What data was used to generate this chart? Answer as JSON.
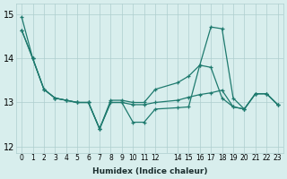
{
  "xlabel": "Humidex (Indice chaleur)",
  "background_color": "#d8eeed",
  "line_color": "#1e7a6e",
  "grid_color": "#aecece",
  "xlim": [
    -0.5,
    23.5
  ],
  "ylim": [
    11.85,
    15.25
  ],
  "yticks": [
    12,
    13,
    14,
    15
  ],
  "xtick_labels": [
    "0",
    "1",
    "2",
    "3",
    "4",
    "5",
    "6",
    "7",
    "8",
    "9",
    "1011",
    "12",
    "",
    "14151617181920212223"
  ],
  "series_x": [
    [
      0,
      1,
      2,
      3,
      4,
      5,
      6,
      7,
      8,
      9,
      10,
      11,
      12,
      14,
      15,
      16,
      17,
      18,
      19,
      20,
      21,
      22,
      23
    ],
    [
      0,
      1,
      2,
      3,
      4,
      5,
      6,
      7,
      8,
      9,
      10,
      11,
      12,
      14,
      15,
      16,
      17,
      18,
      19,
      20,
      21,
      22,
      23
    ],
    [
      0,
      1,
      2,
      3,
      4,
      5,
      6,
      7,
      8,
      9,
      10,
      11,
      12,
      14,
      15,
      16,
      17,
      18,
      19,
      20,
      21,
      22,
      23
    ]
  ],
  "series_y": [
    [
      14.65,
      14.0,
      13.3,
      13.1,
      13.05,
      13.0,
      13.0,
      12.4,
      13.0,
      13.0,
      12.55,
      12.55,
      12.85,
      12.88,
      12.9,
      13.85,
      13.8,
      13.1,
      12.9,
      12.85,
      13.2,
      13.2,
      12.95
    ],
    [
      14.95,
      14.0,
      13.3,
      13.1,
      13.05,
      13.0,
      13.0,
      12.4,
      13.05,
      13.05,
      13.0,
      13.0,
      13.3,
      13.45,
      13.6,
      13.85,
      14.72,
      14.68,
      13.1,
      12.85,
      13.2,
      13.2,
      12.95
    ],
    [
      14.65,
      14.0,
      13.3,
      13.1,
      13.05,
      13.0,
      13.0,
      12.4,
      13.0,
      13.0,
      12.95,
      12.95,
      13.0,
      13.05,
      13.12,
      13.18,
      13.22,
      13.28,
      12.9,
      12.85,
      13.2,
      13.2,
      12.95
    ]
  ]
}
